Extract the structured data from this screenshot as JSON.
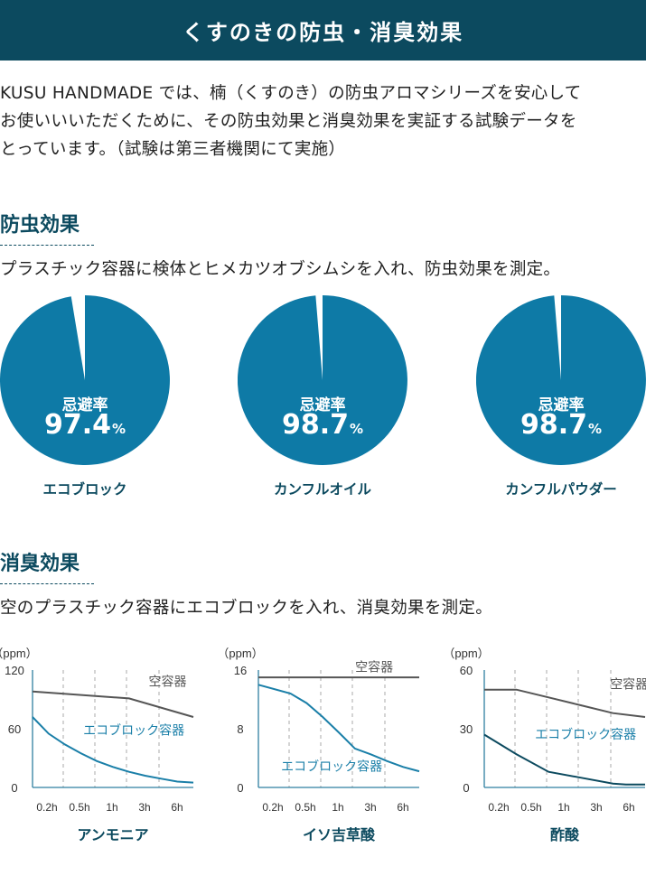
{
  "header": {
    "title": "くすのきの防虫・消臭効果"
  },
  "intro": {
    "lines": [
      "KUSU HANDMADE では、楠（くすのき）の防虫アロマシリーズを安心して",
      "お使いいいただくために、その防虫効果と消臭効果を実証する試験データを",
      "とっています。（試験は第三者機関にて実施）"
    ]
  },
  "insect": {
    "title": "防虫効果",
    "desc": "プラスチック容器に検体とヒメカツオブシムシを入れ、防虫効果を測定。"
  },
  "odor": {
    "title": "消臭効果",
    "desc": "空のプラスチック容器にエコブロックを入れ、消臭効果を測定。"
  },
  "colors": {
    "pie": "#0e7aa6",
    "empty_line": "#555555",
    "eco_line_1": "#1a7fa8",
    "eco_line_3": "#0c4a5f",
    "label_blue": "#1a7fa8",
    "dark": "#0c4a5f",
    "axis": "#2f7fa0",
    "grid": "#aaaaaa"
  },
  "chart_data": [
    {
      "type": "pie",
      "caption": "忌避率",
      "value": 97.4,
      "value_text": "97.4",
      "unit": "%",
      "name": "エコブロック"
    },
    {
      "type": "pie",
      "caption": "忌避率",
      "value": 98.7,
      "value_text": "98.7",
      "unit": "%",
      "name": "カンフルオイル"
    },
    {
      "type": "pie",
      "caption": "忌避率",
      "value": 98.7,
      "value_text": "98.7",
      "unit": "%",
      "name": "カンフルパウダー"
    },
    {
      "type": "line",
      "title": "アンモニア",
      "ylabel": "（ppm）",
      "yticks": [
        0,
        60,
        120
      ],
      "ylim": [
        0,
        120
      ],
      "categories": [
        "0.2h",
        "0.5h",
        "1h",
        "3h",
        "6h"
      ],
      "x_range": [
        0,
        5
      ],
      "series": [
        {
          "name": "空容器",
          "x": [
            0,
            3,
            5
          ],
          "y": [
            98,
            91,
            72
          ],
          "label_x": 4.2,
          "label_y": 104
        },
        {
          "name": "エコブロック容器",
          "x": [
            0,
            0.5,
            1,
            1.5,
            2,
            2.5,
            3,
            3.5,
            4,
            4.5,
            5
          ],
          "y": [
            72,
            55,
            44,
            35,
            27,
            21,
            16,
            12,
            9,
            6,
            5
          ],
          "label_x": 3.15,
          "label_y": 54
        }
      ]
    },
    {
      "type": "line",
      "title": "イソ吉草酸",
      "ylabel": "（ppm）",
      "yticks": [
        0,
        8,
        16
      ],
      "ylim": [
        0,
        16
      ],
      "categories": [
        "0.2h",
        "0.5h",
        "1h",
        "3h",
        "6h"
      ],
      "x_range": [
        0,
        5
      ],
      "series": [
        {
          "name": "空容器",
          "x": [
            0,
            5
          ],
          "y": [
            15,
            15
          ],
          "label_x": 3.6,
          "label_y": 15.8
        },
        {
          "name": "エコブロック容器",
          "x": [
            0,
            1,
            1.5,
            2,
            2.5,
            3,
            3.5,
            4,
            4.5,
            5
          ],
          "y": [
            14,
            12.8,
            11.5,
            9.6,
            7.5,
            5.3,
            4.5,
            3.6,
            2.8,
            2.2
          ],
          "label_x": 2.28,
          "label_y": 2.3
        }
      ]
    },
    {
      "type": "line",
      "title": "酢酸",
      "ylabel": "（ppm）",
      "yticks": [
        0,
        30,
        60
      ],
      "ylim": [
        0,
        60
      ],
      "categories": [
        "0.2h",
        "0.5h",
        "1h",
        "3h",
        "6h"
      ],
      "x_range": [
        0,
        5
      ],
      "series": [
        {
          "name": "空容器",
          "x": [
            0,
            1,
            2,
            3,
            4,
            5
          ],
          "y": [
            50,
            50,
            46,
            42,
            38,
            36
          ],
          "label_x": 4.5,
          "label_y": 50.5
        },
        {
          "name": "エコブロック容器",
          "x": [
            0,
            1,
            2,
            3,
            4,
            4.4,
            5
          ],
          "y": [
            27,
            17,
            8,
            5,
            2,
            1.5,
            1.5
          ],
          "label_x": 3.15,
          "label_y": 25
        }
      ]
    }
  ]
}
